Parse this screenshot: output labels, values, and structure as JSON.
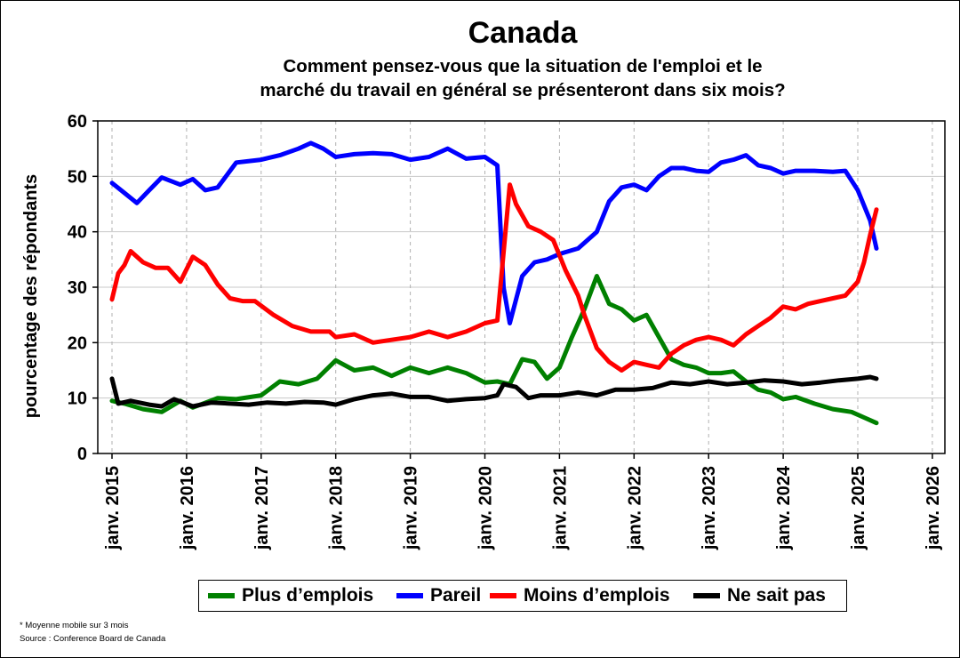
{
  "chart_data": {
    "type": "line",
    "title": "Canada",
    "subtitle": [
      "Comment pensez-vous que la situation de l'emploi et le",
      "marché du travail en général se présenteront dans six mois?"
    ],
    "xlabel": "",
    "ylabel": "pourcentage des répondants",
    "ylim": [
      0,
      60
    ],
    "yticks": [
      0,
      10,
      20,
      30,
      40,
      50,
      60
    ],
    "xlim": [
      "2015-01",
      "2026-01"
    ],
    "xticks": [
      "janv. 2015",
      "janv. 2016",
      "janv. 2017",
      "janv. 2018",
      "janv. 2019",
      "janv. 2020",
      "janv. 2021",
      "janv. 2022",
      "janv. 2023",
      "janv. 2024",
      "janv. 2025",
      "janv. 2026"
    ],
    "grid": true,
    "legend_position": "bottom",
    "series": [
      {
        "name": "Plus d’emplois",
        "color": "#008000",
        "points": [
          [
            "2015-01",
            9.5
          ],
          [
            "2015-03",
            9.0
          ],
          [
            "2015-06",
            8.0
          ],
          [
            "2015-09",
            7.5
          ],
          [
            "2015-12",
            9.5
          ],
          [
            "2016-02",
            8.3
          ],
          [
            "2016-06",
            10.0
          ],
          [
            "2016-09",
            9.8
          ],
          [
            "2017-01",
            10.5
          ],
          [
            "2017-04",
            13.0
          ],
          [
            "2017-07",
            12.5
          ],
          [
            "2017-10",
            13.5
          ],
          [
            "2018-01",
            16.8
          ],
          [
            "2018-04",
            15.0
          ],
          [
            "2018-07",
            15.5
          ],
          [
            "2018-10",
            14.0
          ],
          [
            "2019-01",
            15.5
          ],
          [
            "2019-04",
            14.5
          ],
          [
            "2019-07",
            15.5
          ],
          [
            "2019-10",
            14.5
          ],
          [
            "2020-01",
            12.8
          ],
          [
            "2020-03",
            13.0
          ],
          [
            "2020-05",
            12.5
          ],
          [
            "2020-07",
            17.0
          ],
          [
            "2020-09",
            16.5
          ],
          [
            "2020-11",
            13.5
          ],
          [
            "2021-01",
            15.5
          ],
          [
            "2021-03",
            21.0
          ],
          [
            "2021-05",
            26.0
          ],
          [
            "2021-07",
            32.0
          ],
          [
            "2021-09",
            27.0
          ],
          [
            "2021-11",
            26.0
          ],
          [
            "2022-01",
            24.0
          ],
          [
            "2022-03",
            25.0
          ],
          [
            "2022-05",
            21.0
          ],
          [
            "2022-07",
            17.0
          ],
          [
            "2022-09",
            16.0
          ],
          [
            "2022-11",
            15.5
          ],
          [
            "2023-01",
            14.5
          ],
          [
            "2023-03",
            14.5
          ],
          [
            "2023-05",
            14.8
          ],
          [
            "2023-07",
            13.0
          ],
          [
            "2023-09",
            11.5
          ],
          [
            "2023-11",
            11.0
          ],
          [
            "2024-01",
            9.8
          ],
          [
            "2024-03",
            10.2
          ],
          [
            "2024-06",
            9.0
          ],
          [
            "2024-09",
            8.0
          ],
          [
            "2024-12",
            7.5
          ],
          [
            "2025-02",
            6.5
          ],
          [
            "2025-04",
            5.5
          ]
        ]
      },
      {
        "name": "Pareil",
        "color": "#0000ff",
        "points": [
          [
            "2015-01",
            48.8
          ],
          [
            "2015-03",
            47.0
          ],
          [
            "2015-05",
            45.2
          ],
          [
            "2015-07",
            47.5
          ],
          [
            "2015-09",
            49.8
          ],
          [
            "2015-12",
            48.5
          ],
          [
            "2016-02",
            49.5
          ],
          [
            "2016-04",
            47.5
          ],
          [
            "2016-06",
            48.0
          ],
          [
            "2016-09",
            52.5
          ],
          [
            "2017-01",
            53.0
          ],
          [
            "2017-04",
            53.8
          ],
          [
            "2017-07",
            55.0
          ],
          [
            "2017-09",
            56.0
          ],
          [
            "2017-11",
            55.0
          ],
          [
            "2018-01",
            53.5
          ],
          [
            "2018-04",
            54.0
          ],
          [
            "2018-07",
            54.2
          ],
          [
            "2018-10",
            54.0
          ],
          [
            "2019-01",
            53.0
          ],
          [
            "2019-04",
            53.5
          ],
          [
            "2019-07",
            55.0
          ],
          [
            "2019-10",
            53.2
          ],
          [
            "2020-01",
            53.5
          ],
          [
            "2020-03",
            52.0
          ],
          [
            "2020-04",
            30.0
          ],
          [
            "2020-05",
            23.5
          ],
          [
            "2020-07",
            32.0
          ],
          [
            "2020-09",
            34.5
          ],
          [
            "2020-11",
            35.0
          ],
          [
            "2021-01",
            36.0
          ],
          [
            "2021-04",
            37.0
          ],
          [
            "2021-07",
            40.0
          ],
          [
            "2021-09",
            45.5
          ],
          [
            "2021-11",
            48.0
          ],
          [
            "2022-01",
            48.5
          ],
          [
            "2022-03",
            47.5
          ],
          [
            "2022-05",
            50.0
          ],
          [
            "2022-07",
            51.5
          ],
          [
            "2022-09",
            51.5
          ],
          [
            "2022-11",
            51.0
          ],
          [
            "2023-01",
            50.8
          ],
          [
            "2023-03",
            52.5
          ],
          [
            "2023-05",
            53.0
          ],
          [
            "2023-07",
            53.8
          ],
          [
            "2023-09",
            52.0
          ],
          [
            "2023-11",
            51.5
          ],
          [
            "2024-01",
            50.5
          ],
          [
            "2024-03",
            51.0
          ],
          [
            "2024-06",
            51.0
          ],
          [
            "2024-09",
            50.8
          ],
          [
            "2024-11",
            51.0
          ],
          [
            "2025-01",
            47.5
          ],
          [
            "2025-03",
            42.0
          ],
          [
            "2025-04",
            37.0
          ]
        ]
      },
      {
        "name": "Moins d’emplois",
        "color": "#ff0000",
        "points": [
          [
            "2015-01",
            27.8
          ],
          [
            "2015-02",
            32.5
          ],
          [
            "2015-03",
            34.0
          ],
          [
            "2015-04",
            36.5
          ],
          [
            "2015-06",
            34.5
          ],
          [
            "2015-08",
            33.5
          ],
          [
            "2015-10",
            33.5
          ],
          [
            "2015-12",
            31.0
          ],
          [
            "2016-02",
            35.5
          ],
          [
            "2016-04",
            34.0
          ],
          [
            "2016-06",
            30.5
          ],
          [
            "2016-08",
            28.0
          ],
          [
            "2016-10",
            27.5
          ],
          [
            "2016-12",
            27.5
          ],
          [
            "2017-03",
            25.0
          ],
          [
            "2017-06",
            23.0
          ],
          [
            "2017-09",
            22.0
          ],
          [
            "2017-12",
            22.0
          ],
          [
            "2018-01",
            21.0
          ],
          [
            "2018-04",
            21.5
          ],
          [
            "2018-07",
            20.0
          ],
          [
            "2018-10",
            20.5
          ],
          [
            "2019-01",
            21.0
          ],
          [
            "2019-04",
            22.0
          ],
          [
            "2019-07",
            21.0
          ],
          [
            "2019-10",
            22.0
          ],
          [
            "2020-01",
            23.5
          ],
          [
            "2020-03",
            24.0
          ],
          [
            "2020-05",
            48.5
          ],
          [
            "2020-06",
            45.0
          ],
          [
            "2020-08",
            41.0
          ],
          [
            "2020-10",
            40.0
          ],
          [
            "2020-12",
            38.5
          ],
          [
            "2021-02",
            33.0
          ],
          [
            "2021-04",
            28.5
          ],
          [
            "2021-05",
            25.0
          ],
          [
            "2021-07",
            19.0
          ],
          [
            "2021-09",
            16.5
          ],
          [
            "2021-11",
            15.0
          ],
          [
            "2022-01",
            16.5
          ],
          [
            "2022-03",
            16.0
          ],
          [
            "2022-05",
            15.5
          ],
          [
            "2022-07",
            18.0
          ],
          [
            "2022-09",
            19.5
          ],
          [
            "2022-11",
            20.5
          ],
          [
            "2023-01",
            21.0
          ],
          [
            "2023-03",
            20.5
          ],
          [
            "2023-05",
            19.5
          ],
          [
            "2023-07",
            21.5
          ],
          [
            "2023-09",
            23.0
          ],
          [
            "2023-11",
            24.5
          ],
          [
            "2024-01",
            26.5
          ],
          [
            "2024-03",
            26.0
          ],
          [
            "2024-05",
            27.0
          ],
          [
            "2024-07",
            27.5
          ],
          [
            "2024-09",
            28.0
          ],
          [
            "2024-11",
            28.5
          ],
          [
            "2025-01",
            31.0
          ],
          [
            "2025-02",
            34.5
          ],
          [
            "2025-03",
            39.5
          ],
          [
            "2025-04",
            44.0
          ]
        ]
      },
      {
        "name": "Ne sait pas",
        "color": "#000000",
        "points": [
          [
            "2015-01",
            13.5
          ],
          [
            "2015-02",
            9.0
          ],
          [
            "2015-04",
            9.5
          ],
          [
            "2015-07",
            8.8
          ],
          [
            "2015-09",
            8.5
          ],
          [
            "2015-11",
            9.8
          ],
          [
            "2016-02",
            8.5
          ],
          [
            "2016-05",
            9.2
          ],
          [
            "2016-08",
            9.0
          ],
          [
            "2016-11",
            8.8
          ],
          [
            "2017-02",
            9.2
          ],
          [
            "2017-05",
            9.0
          ],
          [
            "2017-08",
            9.3
          ],
          [
            "2017-11",
            9.2
          ],
          [
            "2018-01",
            8.8
          ],
          [
            "2018-04",
            9.8
          ],
          [
            "2018-07",
            10.5
          ],
          [
            "2018-10",
            10.8
          ],
          [
            "2019-01",
            10.2
          ],
          [
            "2019-04",
            10.2
          ],
          [
            "2019-07",
            9.5
          ],
          [
            "2019-10",
            9.8
          ],
          [
            "2020-01",
            10.0
          ],
          [
            "2020-03",
            10.5
          ],
          [
            "2020-04",
            12.5
          ],
          [
            "2020-06",
            12.0
          ],
          [
            "2020-08",
            10.0
          ],
          [
            "2020-10",
            10.5
          ],
          [
            "2021-01",
            10.5
          ],
          [
            "2021-04",
            11.0
          ],
          [
            "2021-07",
            10.5
          ],
          [
            "2021-10",
            11.5
          ],
          [
            "2022-01",
            11.5
          ],
          [
            "2022-04",
            11.8
          ],
          [
            "2022-07",
            12.8
          ],
          [
            "2022-10",
            12.5
          ],
          [
            "2023-01",
            13.0
          ],
          [
            "2023-04",
            12.5
          ],
          [
            "2023-07",
            12.8
          ],
          [
            "2023-10",
            13.2
          ],
          [
            "2024-01",
            13.0
          ],
          [
            "2024-04",
            12.5
          ],
          [
            "2024-07",
            12.8
          ],
          [
            "2024-10",
            13.2
          ],
          [
            "2025-01",
            13.5
          ],
          [
            "2025-03",
            13.8
          ],
          [
            "2025-04",
            13.5
          ]
        ]
      }
    ]
  },
  "footnotes": [
    "* Moyenne mobile sur 3 mois",
    "Source : Conference Board de Canada"
  ]
}
